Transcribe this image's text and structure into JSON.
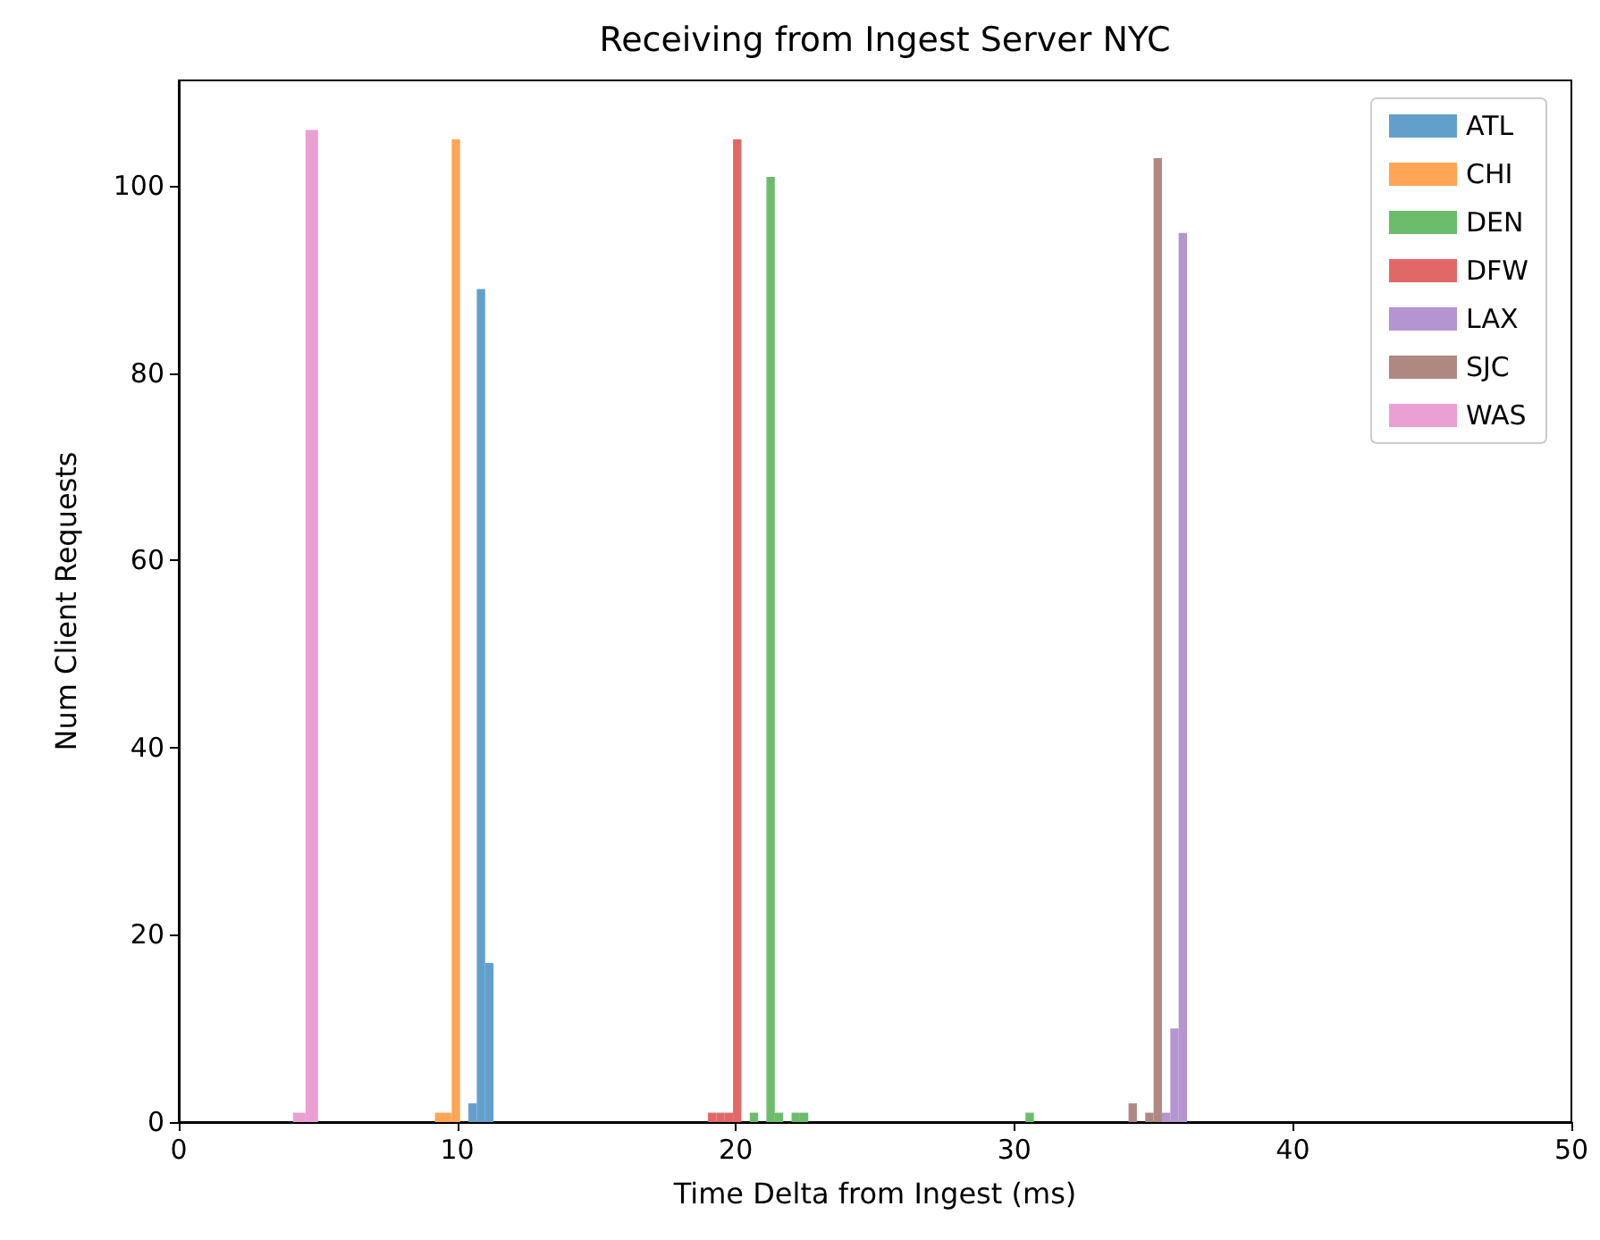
{
  "chart_data": {
    "type": "histogram",
    "title": "Receiving from Ingest Server NYC",
    "xlabel": "Time Delta from Ingest (ms)",
    "ylabel": "Num Client Requests",
    "bins": [
      4.1,
      4.55,
      5.0,
      9.2,
      9.5,
      9.8,
      10.1,
      10.4,
      10.7,
      11.0,
      11.3,
      19.0,
      19.3,
      19.6,
      19.9,
      20.2,
      20.5,
      20.8,
      21.1,
      21.4,
      21.7,
      22.0,
      22.3,
      22.6,
      30.4,
      30.7,
      34.1,
      34.4,
      34.7,
      35.0,
      35.3,
      35.6,
      35.9,
      36.2
    ],
    "series": [
      {
        "name": "ATL",
        "color": "#62a0cb",
        "values": [
          0,
          0,
          0,
          0,
          0,
          0,
          0,
          2,
          89,
          17,
          0,
          0,
          0,
          0,
          0,
          0,
          0,
          0,
          0,
          0,
          0,
          0,
          0,
          0,
          0,
          0,
          0,
          0,
          0,
          0,
          0,
          0,
          0
        ]
      },
      {
        "name": "CHI",
        "color": "#ffa556",
        "values": [
          0,
          0,
          0,
          1,
          1,
          105,
          0,
          0,
          0,
          0,
          0,
          0,
          0,
          0,
          0,
          0,
          0,
          0,
          0,
          0,
          0,
          0,
          0,
          0,
          0,
          0,
          0,
          0,
          0,
          0,
          0,
          0,
          0
        ]
      },
      {
        "name": "DEN",
        "color": "#6bbc6b",
        "values": [
          0,
          0,
          0,
          0,
          0,
          0,
          0,
          0,
          0,
          0,
          0,
          0,
          0,
          0,
          0,
          0,
          1,
          0,
          101,
          1,
          0,
          1,
          1,
          0,
          1,
          0,
          0,
          0,
          0,
          0,
          0,
          0,
          0
        ]
      },
      {
        "name": "DFW",
        "color": "#e26868",
        "values": [
          0,
          0,
          0,
          0,
          0,
          0,
          0,
          0,
          0,
          0,
          0,
          1,
          1,
          1,
          105,
          0,
          0,
          0,
          0,
          0,
          0,
          0,
          0,
          0,
          0,
          0,
          0,
          0,
          0,
          0,
          0,
          0,
          0
        ]
      },
      {
        "name": "LAX",
        "color": "#b494d1",
        "values": [
          0,
          0,
          0,
          0,
          0,
          0,
          0,
          0,
          0,
          0,
          0,
          0,
          0,
          0,
          0,
          0,
          0,
          0,
          0,
          0,
          0,
          0,
          0,
          0,
          0,
          0,
          0,
          0,
          0,
          0,
          1,
          10,
          95
        ]
      },
      {
        "name": "SJC",
        "color": "#af8981",
        "values": [
          0,
          0,
          0,
          0,
          0,
          0,
          0,
          0,
          0,
          0,
          0,
          0,
          0,
          0,
          0,
          0,
          0,
          0,
          0,
          0,
          0,
          0,
          0,
          0,
          0,
          0,
          2,
          0,
          1,
          103,
          0,
          0,
          0
        ]
      },
      {
        "name": "WAS",
        "color": "#eba0d4",
        "values": [
          1,
          106,
          0,
          0,
          0,
          0,
          0,
          0,
          0,
          0,
          0,
          0,
          0,
          0,
          0,
          0,
          0,
          0,
          0,
          0,
          0,
          0,
          0,
          0,
          0,
          0,
          0,
          0,
          0,
          0,
          0,
          0,
          0
        ]
      }
    ],
    "xlim": [
      0,
      50
    ],
    "xticks": [
      0,
      10,
      20,
      30,
      40,
      50
    ],
    "ylim": [
      0,
      111.3
    ],
    "yticks": [
      0,
      20,
      40,
      60,
      80,
      100
    ],
    "legend": "top right"
  }
}
